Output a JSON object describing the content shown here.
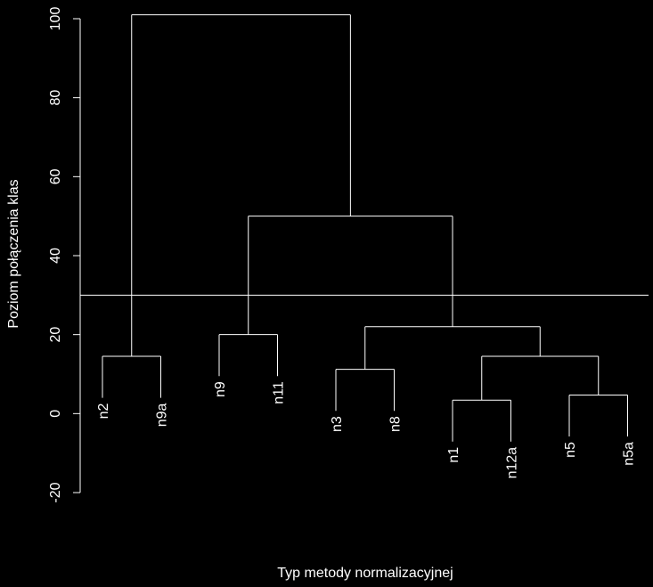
{
  "chart_data": {
    "type": "dendrogram",
    "xlabel": "Typ metody normalizacyjnej",
    "ylabel": "Poziom połączenia klas",
    "ylim": [
      -20,
      100
    ],
    "yticks": [
      -20,
      0,
      20,
      40,
      60,
      80,
      100
    ],
    "cut_height": 30,
    "leaves": [
      "n2",
      "n9a",
      "n9",
      "n11",
      "n3",
      "n8",
      "n1",
      "n12a",
      "n5",
      "n5a"
    ],
    "merges": [
      {
        "left": "n2",
        "right": "n9a",
        "height": 14.5
      },
      {
        "left": "n9",
        "right": "n11",
        "height": 20
      },
      {
        "left": "n3",
        "right": "n8",
        "height": 11.2
      },
      {
        "left": "n1",
        "right": "n12a",
        "height": 3.4
      },
      {
        "left": "n5",
        "right": "n5a",
        "height": 4.7
      },
      {
        "left": "m4",
        "right": "m5",
        "height": 14.5
      },
      {
        "left": "m3",
        "right": "m6",
        "height": 22
      },
      {
        "left": "m2",
        "right": "m7",
        "height": 50
      },
      {
        "left": "m1",
        "right": "m8",
        "height": 101
      }
    ],
    "colors": {
      "background": "#000000",
      "foreground": "#ffffff"
    }
  }
}
